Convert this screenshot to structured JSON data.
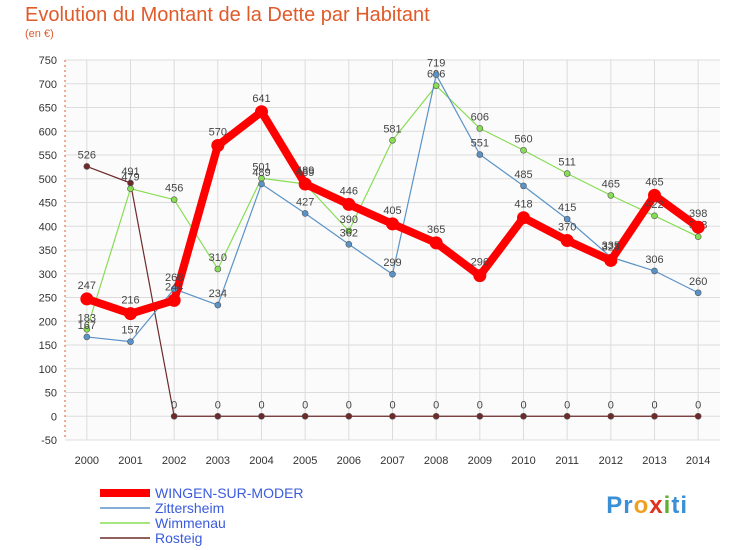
{
  "title": "Evolution du Montant de la Dette par Habitant",
  "subtitle": "(en €)",
  "logo": {
    "parts": [
      "Pr",
      "o",
      "x",
      "i",
      "ti"
    ],
    "colors": [
      "#3b8fd6",
      "#f0a020",
      "#e03020",
      "#5fb030",
      "#3b8fd6"
    ]
  },
  "chart_data": {
    "type": "line",
    "x": [
      "2000",
      "2001",
      "2002",
      "2003",
      "2004",
      "2005",
      "2006",
      "2007",
      "2008",
      "2009",
      "2010",
      "2011",
      "2012",
      "2013",
      "2014"
    ],
    "ylim": [
      -50,
      750
    ],
    "yticks": [
      -50,
      0,
      50,
      100,
      150,
      200,
      250,
      300,
      350,
      400,
      450,
      500,
      550,
      600,
      650,
      700,
      750
    ],
    "grid": true,
    "legend_position": "bottom-left",
    "series": [
      {
        "name": "Rosteig",
        "color": "#6e2a2a",
        "width": 1.2,
        "values": [
          526,
          491,
          0,
          0,
          0,
          0,
          0,
          0,
          0,
          0,
          0,
          0,
          0,
          0,
          0
        ]
      },
      {
        "name": "Wimmenau",
        "color": "#88dd55",
        "width": 1.2,
        "values": [
          183,
          479,
          456,
          310,
          501,
          489,
          390,
          581,
          696,
          606,
          560,
          511,
          465,
          422,
          378
        ]
      },
      {
        "name": "Zittersheim",
        "color": "#5b93c7",
        "width": 1.2,
        "values": [
          167,
          157,
          268,
          234,
          489,
          427,
          362,
          299,
          719,
          551,
          485,
          415,
          335,
          306,
          260
        ]
      },
      {
        "name": "WINGEN-SUR-MODER",
        "color": "#ff0000",
        "width": 8,
        "values": [
          247,
          216,
          244,
          570,
          641,
          489,
          446,
          405,
          365,
          296,
          418,
          370,
          328,
          465,
          398
        ]
      }
    ],
    "legend_order": [
      "WINGEN-SUR-MODER",
      "Zittersheim",
      "Wimmenau",
      "Rosteig"
    ]
  }
}
